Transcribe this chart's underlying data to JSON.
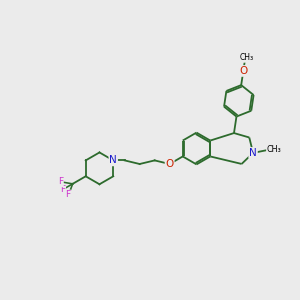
{
  "bg_color": "#ebebeb",
  "bond_color": "#2d6b2d",
  "atom_colors": {
    "N": "#1a1acc",
    "O": "#cc2200",
    "F": "#cc33cc"
  },
  "line_width": 1.3,
  "font_size": 7.5
}
